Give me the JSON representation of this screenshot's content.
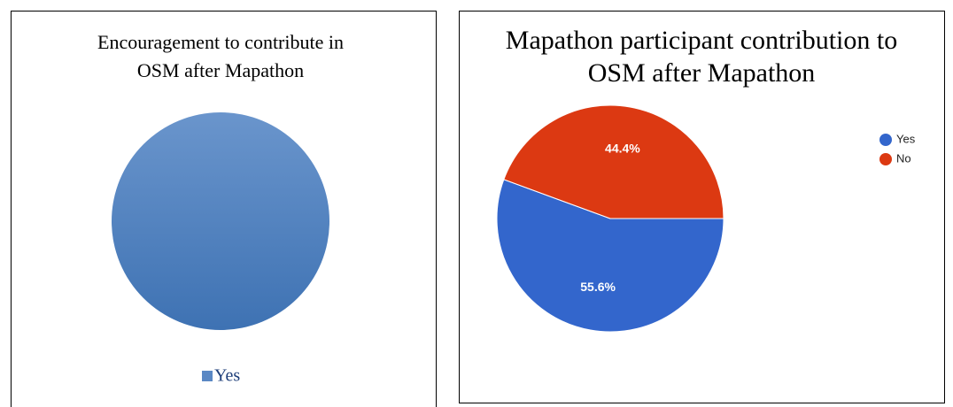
{
  "chart_data": [
    {
      "type": "pie",
      "title": [
        "Encouragement to contribute in",
        "OSM after Mapathon"
      ],
      "categories": [
        "Yes"
      ],
      "values": [
        100
      ],
      "colors": [
        "#5a88c4"
      ],
      "legend": "bottom"
    },
    {
      "type": "pie",
      "title": [
        "Mapathon participant contribution to",
        "OSM after Mapathon"
      ],
      "categories": [
        "Yes",
        "No"
      ],
      "values": [
        55.6,
        44.4
      ],
      "value_labels": [
        "55.6%",
        "44.4%"
      ],
      "colors": [
        "#3366cc",
        "#dc3912"
      ],
      "legend": "right"
    }
  ]
}
